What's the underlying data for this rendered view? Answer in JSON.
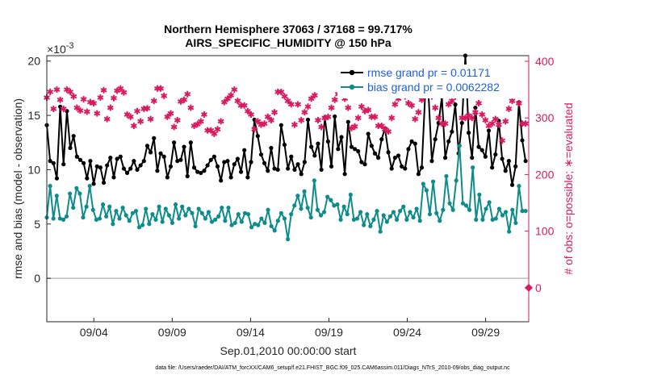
{
  "chart_data": {
    "type": "line",
    "title_line1": "Northern Hemisphere 37063 / 37168 = 99.717%",
    "title_line2": "AIRS_SPECIFIC_HUMIDITY @ 150 hPa",
    "xlabel": "Sep.01,2010 00:00:00 start",
    "ylabel": "rmse and bias (model - observation)",
    "ylabel_right": "# of obs: o=possible; ∗=evaluated",
    "y_exponent": "×10",
    "y_exponent_power": "-3",
    "footer": "data file: /Users/raeder/DAI/ATM_forcXX/CAM6_setup/f.e21.FHIST_BGC.f09_025.CAM6assim.011/Diags_NTrS_2010-09/obs_diag_output.nc",
    "x_range": [
      1.0,
      31.75
    ],
    "x_unit": "day of Sep 2010",
    "x_ticks": [
      4,
      9,
      14,
      19,
      24,
      29
    ],
    "x_tick_labels": [
      "09/04",
      "09/09",
      "09/14",
      "09/19",
      "09/24",
      "09/29"
    ],
    "ylim": [
      -4,
      20.5
    ],
    "yticks": [
      0,
      5,
      10,
      15,
      20
    ],
    "ylim_right": [
      -60,
      410
    ],
    "yticks_right": [
      0,
      100,
      200,
      300,
      400
    ],
    "grid": false,
    "legend_position": "top-right",
    "colors": {
      "rmse": "#000000",
      "bias": "#0e8c8c",
      "obs": "#d81b60",
      "zero": "#bdbdbd",
      "legend_text": "#1f5ee0"
    },
    "series": [
      {
        "name": "rmse grand pr = 0.01171",
        "axis": "left",
        "marker": "filled-circle",
        "values": [
          14.1,
          10.8,
          10.6,
          9.2,
          15.8,
          10.5,
          15.4,
          12.0,
          13.1,
          11.2,
          10.9,
          10.6,
          9.2,
          10.8,
          8.7,
          10.3,
          10.2,
          8.8,
          10.4,
          11.1,
          9.3,
          11.0,
          11.2,
          10.1,
          9.7,
          10.1,
          10.8,
          10.0,
          10.4,
          10.8,
          12.2,
          11.6,
          12.9,
          9.9,
          11.5,
          11.2,
          9.3,
          10.3,
          12.5,
          10.8,
          10.9,
          12.1,
          9.4,
          12.5,
          10.2,
          9.8,
          9.7,
          9.9,
          10.4,
          10.9,
          11.2,
          10.3,
          9.0,
          10.7,
          10.8,
          9.3,
          10.5,
          11.0,
          9.8,
          11.8,
          9.3,
          10.7,
          14.6,
          13.1,
          11.4,
          10.6,
          9.9,
          12.0,
          10.1,
          10.0,
          14.1,
          12.3,
          10.1,
          11.2,
          10.0,
          10.5,
          9.6,
          10.7,
          14.6,
          12.1,
          11.3,
          12.4,
          10.0,
          14.8,
          12.6,
          10.3,
          14.9,
          11.9,
          13.0,
          9.6,
          14.4,
          12.1,
          11.9,
          11.7,
          10.7,
          10.5,
          13.3,
          12.2,
          11.5,
          11.1,
          12.8,
          13.8,
          11.6,
          10.1,
          11.1,
          11.3,
          10.3,
          10.1,
          11.9,
          12.6,
          12.4,
          9.6,
          10.2,
          16.9,
          17.0,
          10.8,
          12.8,
          14.3,
          16.7,
          11.1,
          12.6,
          13.5,
          16.0,
          11.5,
          14.3,
          20.5,
          13.4,
          11.1,
          15.7,
          12.1,
          11.8,
          11.2,
          13.6,
          10.2,
          11.4,
          14.5,
          11.0,
          9.9,
          10.8,
          8.6,
          10.3,
          16.2,
          12.7,
          10.8
        ]
      },
      {
        "name": "bias grand pr = 0.0062282",
        "axis": "left",
        "marker": "filled-circle",
        "values": [
          5.6,
          8.5,
          5.5,
          7.6,
          5.5,
          5.4,
          5.7,
          7.8,
          6.5,
          8.3,
          7.8,
          5.6,
          6.6,
          8.5,
          6.3,
          5.4,
          5.5,
          6.8,
          5.7,
          6.6,
          5.0,
          6.2,
          5.5,
          6.5,
          5.8,
          5.3,
          6.0,
          6.2,
          4.7,
          4.9,
          6.4,
          5.0,
          5.9,
          5.4,
          6.6,
          5.2,
          6.4,
          5.8,
          5.1,
          6.8,
          5.5,
          6.6,
          5.8,
          6.4,
          6.0,
          4.8,
          6.4,
          6.0,
          5.5,
          6.1,
          5.2,
          5.4,
          5.7,
          6.5,
          5.3,
          6.5,
          4.9,
          5.1,
          5.9,
          5.2,
          6.0,
          5.9,
          4.7,
          5.0,
          4.9,
          5.5,
          5.1,
          6.3,
          4.8,
          4.4,
          5.3,
          6.0,
          5.5,
          3.6,
          5.9,
          6.7,
          7.6,
          6.4,
          8.0,
          6.5,
          5.6,
          9.0,
          6.3,
          5.8,
          6.1,
          7.5,
          7.2,
          6.7,
          6.8,
          5.4,
          6.6,
          5.9,
          7.7,
          5.4,
          5.5,
          6.1,
          4.9,
          5.9,
          4.8,
          5.4,
          6.2,
          4.3,
          5.8,
          5.2,
          5.7,
          6.1,
          5.4,
          6.2,
          6.6,
          5.4,
          6.1,
          5.6,
          6.4,
          5.3,
          8.7,
          8.1,
          5.9,
          8.9,
          6.0,
          5.3,
          6.3,
          9.4,
          6.9,
          6.3,
          9.0,
          12.2,
          6.9,
          6.7,
          6.3,
          10.2,
          5.4,
          7.7,
          5.4,
          6.4,
          7.0,
          5.4,
          5.5,
          6.4,
          5.8,
          6.1,
          4.3,
          6.3,
          5.1,
          8.5,
          6.2,
          6.2
        ]
      },
      {
        "name": "# of obs",
        "axis": "right",
        "marker": "asterisk",
        "values": [
          336,
          346,
          316,
          350,
          332,
          316,
          350,
          346,
          338,
          318,
          313,
          333,
          311,
          328,
          326,
          308,
          336,
          349,
          298,
          318,
          335,
          348,
          352,
          345,
          306,
          302,
          286,
          312,
          294,
          316,
          317,
          298,
          330,
          352,
          352,
          339,
          302,
          308,
          284,
          296,
          329,
          332,
          342,
          318,
          286,
          289,
          294,
          306,
          278,
          278,
          272,
          280,
          294,
          328,
          334,
          340,
          350,
          330,
          322,
          322,
          312,
          306,
          280,
          294,
          288,
          290,
          302,
          296,
          310,
          346,
          346,
          338,
          330,
          324,
          288,
          324,
          296,
          310,
          320,
          334,
          340,
          296,
          284,
          300,
          302,
          318,
          332,
          342,
          348,
          334,
          318,
          282,
          285,
          300,
          320,
          312,
          314,
          302,
          302,
          286,
          286,
          280,
          276,
          300,
          324,
          334,
          342,
          338,
          326,
          322,
          298,
          310,
          332,
          340,
          346,
          338,
          318,
          300,
          290,
          290,
          324,
          330,
          338,
          350,
          300,
          300,
          304,
          300,
          310,
          326,
          306,
          296,
          286,
          290,
          298,
          288,
          260,
          294,
          316,
          330,
          340,
          326,
          290,
          290
        ]
      }
    ],
    "zero_point": {
      "x": 31.75,
      "value": 0
    }
  }
}
